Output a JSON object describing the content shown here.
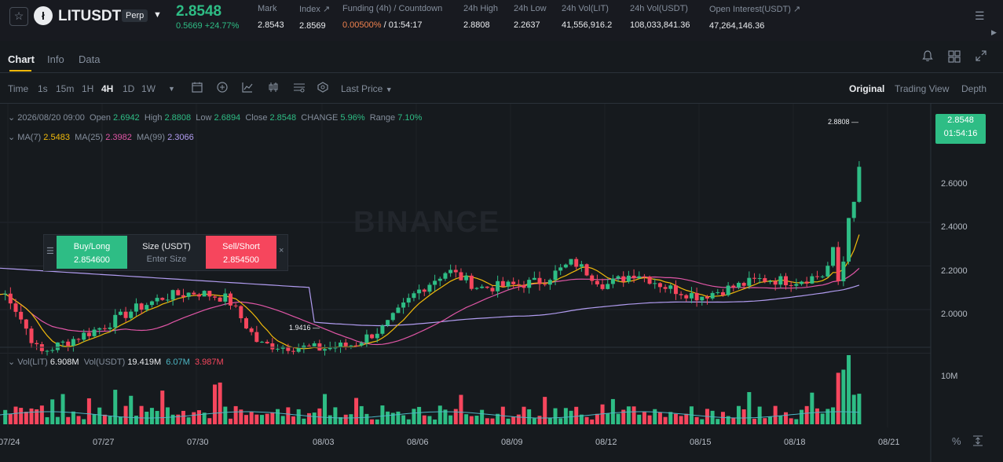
{
  "header": {
    "symbol": "LITUSDT",
    "contract_type": "Perp",
    "last_price": "2.8548",
    "change_abs": "0.5669",
    "change_pct": "+24.77%",
    "stats": [
      {
        "label": "Mark",
        "value": "2.8543"
      },
      {
        "label": "Index ↗",
        "value": "2.8569"
      },
      {
        "label": "Funding (4h) / Countdown",
        "value": "0.00500%",
        "value2": "/ 01:54:17"
      },
      {
        "label": "24h High",
        "value": "2.8808"
      },
      {
        "label": "24h Low",
        "value": "2.2637"
      },
      {
        "label": "24h Vol(LIT)",
        "value": "41,556,916.2"
      },
      {
        "label": "24h Vol(USDT)",
        "value": "108,033,841.36"
      },
      {
        "label": "Open Interest(USDT) ↗",
        "value": "47,264,146.36"
      }
    ]
  },
  "tabs": [
    "Chart",
    "Info",
    "Data"
  ],
  "toolbar": {
    "intervals": [
      "Time",
      "1s",
      "15m",
      "1H",
      "4H",
      "1D",
      "1W"
    ],
    "active_interval": "4H",
    "price_type": "Last Price",
    "views": [
      "Original",
      "Trading View",
      "Depth"
    ],
    "active_view": "Original"
  },
  "ohlc_legend": {
    "datetime": "2026/08/20 09:00",
    "open_label": "Open",
    "open": "2.6942",
    "high_label": "High",
    "high": "2.8808",
    "low_label": "Low",
    "low": "2.6894",
    "close_label": "Close",
    "close": "2.8548",
    "change_label": "CHANGE",
    "change": "5.96%",
    "range_label": "Range",
    "range": "7.10%"
  },
  "ma_legend": {
    "ma7_label": "MA(7)",
    "ma7": "2.5483",
    "ma25_label": "MA(25)",
    "ma25": "2.3982",
    "ma99_label": "MA(99)",
    "ma99": "2.3066"
  },
  "vol_legend": {
    "vol_lit_label": "Vol(LIT)",
    "vol_lit": "6.908M",
    "vol_usdt_label": "Vol(USDT)",
    "vol_usdt": "19.419M",
    "ma_a": "6.07M",
    "ma_b": "3.987M"
  },
  "price_tag": {
    "price": "2.8548",
    "countdown": "01:54:16"
  },
  "annotations": {
    "high_marker": "2.8808",
    "low_marker": "1.9416"
  },
  "watermark": "BINANCE",
  "price_axis": [
    "2.6000",
    "2.4000",
    "2.2000",
    "2.0000"
  ],
  "volume_axis": [
    "10M"
  ],
  "date_axis": [
    "07/24",
    "07/27",
    "07/30",
    "08/03",
    "08/06",
    "08/09",
    "08/12",
    "08/15",
    "08/18",
    "08/21"
  ],
  "trade_panel": {
    "buy_label": "Buy/Long",
    "buy_price": "2.854600",
    "size_label": "Size (USDT)",
    "size_placeholder": "Enter Size",
    "sell_label": "Sell/Short",
    "sell_price": "2.854500"
  },
  "colors": {
    "up": "#2ebd85",
    "down": "#f6465d",
    "ma7": "#f0b90b",
    "ma25": "#e056a6",
    "ma99": "#b19cf0",
    "accent": "#f0b90b"
  },
  "chart_data": {
    "type": "candlestick",
    "interval": "4H",
    "x_range": [
      "07/24",
      "08/20"
    ],
    "ylim": [
      1.9,
      2.9
    ],
    "anchors": [
      {
        "date": "07/24",
        "close": 2.27
      },
      {
        "date": "07/25",
        "close": 2.0
      },
      {
        "date": "07/26",
        "close": 2.06
      },
      {
        "date": "07/27",
        "close": 2.12
      },
      {
        "date": "07/28",
        "close": 2.2
      },
      {
        "date": "07/29",
        "close": 2.26
      },
      {
        "date": "07/30",
        "close": 2.28
      },
      {
        "date": "08/01",
        "close": 2.25
      },
      {
        "date": "08/02",
        "close": 2.04
      },
      {
        "date": "08/03",
        "close": 2.02
      },
      {
        "date": "08/04",
        "close": 2.04
      },
      {
        "date": "08/05",
        "close": 2.12
      },
      {
        "date": "08/06",
        "close": 2.28
      },
      {
        "date": "08/07",
        "close": 2.38
      },
      {
        "date": "08/08",
        "close": 2.3
      },
      {
        "date": "08/09",
        "close": 2.31
      },
      {
        "date": "08/10",
        "close": 2.33
      },
      {
        "date": "08/11",
        "close": 2.42
      },
      {
        "date": "08/12",
        "close": 2.31
      },
      {
        "date": "08/13",
        "close": 2.37
      },
      {
        "date": "08/14",
        "close": 2.3
      },
      {
        "date": "08/15",
        "close": 2.26
      },
      {
        "date": "08/16",
        "close": 2.3
      },
      {
        "date": "08/17",
        "close": 2.34
      },
      {
        "date": "08/18",
        "close": 2.33
      },
      {
        "date": "08/19",
        "close": 2.36
      },
      {
        "date": "08/20",
        "close": 2.8548
      }
    ],
    "last_candle": {
      "open": 2.6942,
      "high": 2.8808,
      "low": 2.6894,
      "close": 2.8548
    },
    "period_low": 1.9416,
    "moving_averages": [
      {
        "name": "MA(7)",
        "last": 2.5483
      },
      {
        "name": "MA(25)",
        "last": 2.3982
      },
      {
        "name": "MA(99)",
        "last": 2.3066
      }
    ],
    "volume": {
      "last_lit": 6.908,
      "last_usdt": 19.419,
      "unit": "M",
      "axis_label": "10M"
    }
  }
}
